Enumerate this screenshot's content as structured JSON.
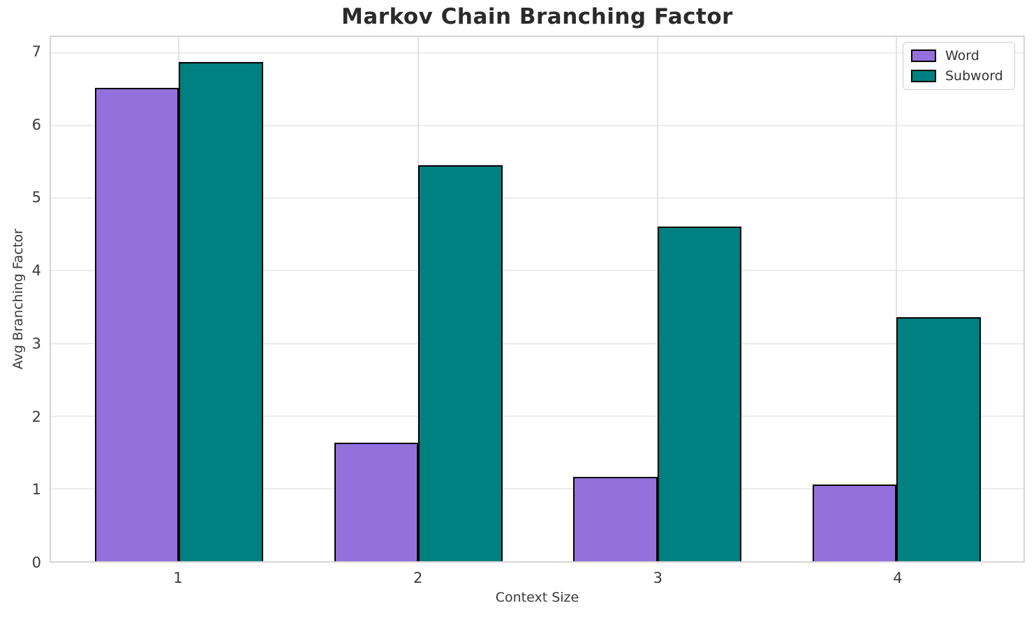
{
  "title": "Markov Chain Branching Factor",
  "chart_data": {
    "type": "bar",
    "title": "Markov Chain Branching Factor",
    "xlabel": "Context Size",
    "ylabel": "Avg Branching Factor",
    "categories": [
      "1",
      "2",
      "3",
      "4"
    ],
    "series": [
      {
        "name": "Word",
        "color": "#9370DB",
        "values": [
          6.52,
          1.63,
          1.16,
          1.06
        ]
      },
      {
        "name": "Subword",
        "color": "#008080",
        "values": [
          6.87,
          5.45,
          4.61,
          3.36
        ]
      }
    ],
    "yticks": [
      0,
      1,
      2,
      3,
      4,
      5,
      6,
      7
    ],
    "ylim": [
      0,
      7.22
    ],
    "grid": true,
    "legend_position": "upper right",
    "bar_edge_color": "#000000",
    "grid_color": "#ebebeb",
    "spine_color": "#d5d5d5",
    "title_color": "#2b2b2b",
    "tick_color": "#3a3a3a"
  }
}
